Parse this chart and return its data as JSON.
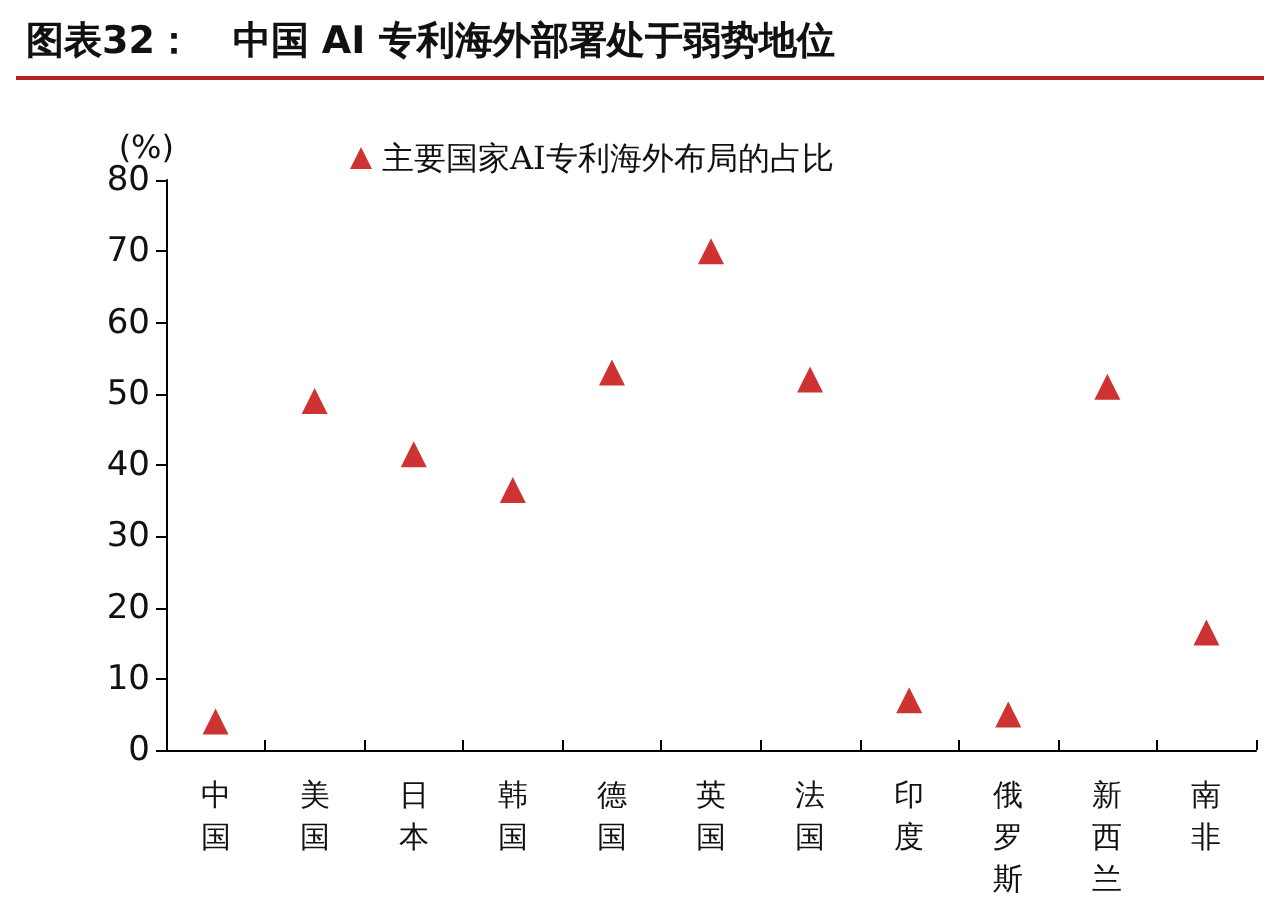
{
  "chart_data": {
    "type": "scatter",
    "title": "图表32：   中国 AI 专利海外部署处于弱势地位",
    "ylabel": "(%)",
    "categories": [
      "中国",
      "美国",
      "日本",
      "韩国",
      "德国",
      "英国",
      "法国",
      "印度",
      "俄罗斯",
      "新西兰",
      "南非"
    ],
    "series": [
      {
        "name": "主要国家AI专利海外布局的占比",
        "color": "#c00000",
        "values": [
          4,
          49,
          41.5,
          36.5,
          53,
          70,
          52,
          7,
          5,
          51,
          16.5
        ]
      }
    ],
    "ylim": [
      0,
      80
    ],
    "yticks": [
      0,
      10,
      20,
      30,
      40,
      50,
      60,
      70,
      80
    ],
    "grid": false,
    "legend": "top",
    "marker": "triangle"
  }
}
